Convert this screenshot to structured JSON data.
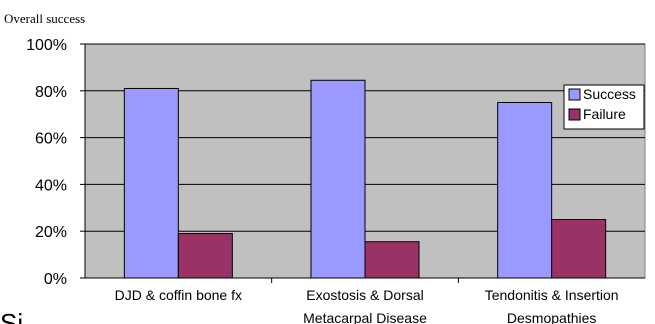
{
  "chart_data": {
    "type": "bar",
    "title": "Overall success",
    "categories": [
      [
        "DJD & coffin bone fx"
      ],
      [
        "Exostosis & Dorsal",
        "Metacarpal Disease"
      ],
      [
        "Tendonitis & Insertion",
        "Desmopathies"
      ]
    ],
    "series": [
      {
        "name": "Success",
        "values": [
          81,
          84.5,
          75
        ],
        "color": "#9999ff"
      },
      {
        "name": "Failure",
        "values": [
          19,
          15.5,
          25
        ],
        "color": "#993366"
      }
    ],
    "ylim": [
      0,
      100
    ],
    "yticks": [
      "0%",
      "20%",
      "40%",
      "60%",
      "80%",
      "100%"
    ],
    "grid": true,
    "plot_background": "#c0c0c0",
    "legend": "top-right",
    "stray_text": "Si"
  }
}
